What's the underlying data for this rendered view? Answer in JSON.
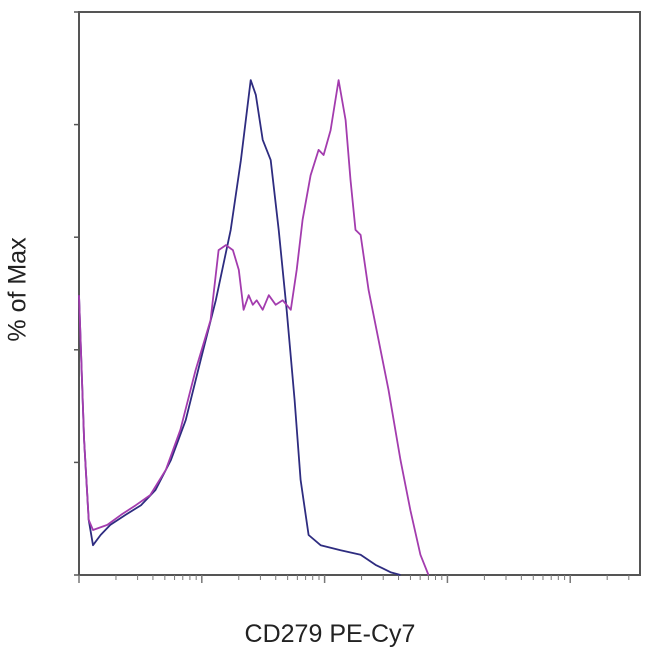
{
  "chart_data": {
    "type": "line",
    "title": "",
    "xlabel": "CD279 PE-Cy7",
    "ylabel": "% of Max",
    "xscale": "log",
    "xlim": [
      10,
      370000
    ],
    "ylim": [
      0,
      100
    ],
    "yticks": [
      0,
      20,
      40,
      60,
      80,
      100
    ],
    "tick_labels_shown": false,
    "grid": false,
    "legend": "none",
    "series": [
      {
        "color": "#2e2c80",
        "x": [
          10,
          11,
          12,
          13,
          15,
          18,
          24,
          32,
          42,
          56,
          74,
          98,
          130,
          172,
          208,
          250,
          275,
          313,
          364,
          423,
          491,
          570,
          638,
          741,
          927,
          1349,
          1963,
          2600,
          3443,
          4150
        ],
        "y": [
          49.7,
          24,
          9.8,
          5.3,
          7.1,
          8.9,
          10.7,
          12.4,
          15.1,
          20.4,
          27.5,
          38.2,
          48.8,
          61.3,
          73.7,
          87.9,
          85.3,
          77.3,
          73.7,
          61.3,
          47,
          31.1,
          16.9,
          7.1,
          5.3,
          4.4,
          3.6,
          1.8,
          0.5,
          0
        ]
      },
      {
        "color": "#a33cae",
        "x": [
          10,
          11,
          12,
          13,
          17,
          22,
          29,
          38,
          51,
          67,
          89,
          118,
          137,
          157,
          179,
          200,
          219,
          241,
          260,
          280,
          313,
          351,
          400,
          456,
          530,
          592,
          662,
          769,
          893,
          981,
          1119,
          1300,
          1483,
          1626,
          1786,
          1963,
          2280,
          2750,
          3311,
          4150,
          5000,
          6030,
          7010
        ],
        "y": [
          49.7,
          24,
          9.8,
          8,
          8.9,
          10.7,
          12.4,
          14.2,
          18.7,
          25.8,
          36.4,
          45.3,
          57.7,
          58.6,
          57.7,
          54.2,
          47.1,
          49.7,
          48,
          48.8,
          47.1,
          49.7,
          48,
          48.8,
          47.1,
          54.2,
          63.1,
          71,
          75.5,
          74.6,
          79,
          87.9,
          80.8,
          70.2,
          61.3,
          60.4,
          50.6,
          41.7,
          32.9,
          20.4,
          11.5,
          3.6,
          0
        ]
      }
    ]
  }
}
